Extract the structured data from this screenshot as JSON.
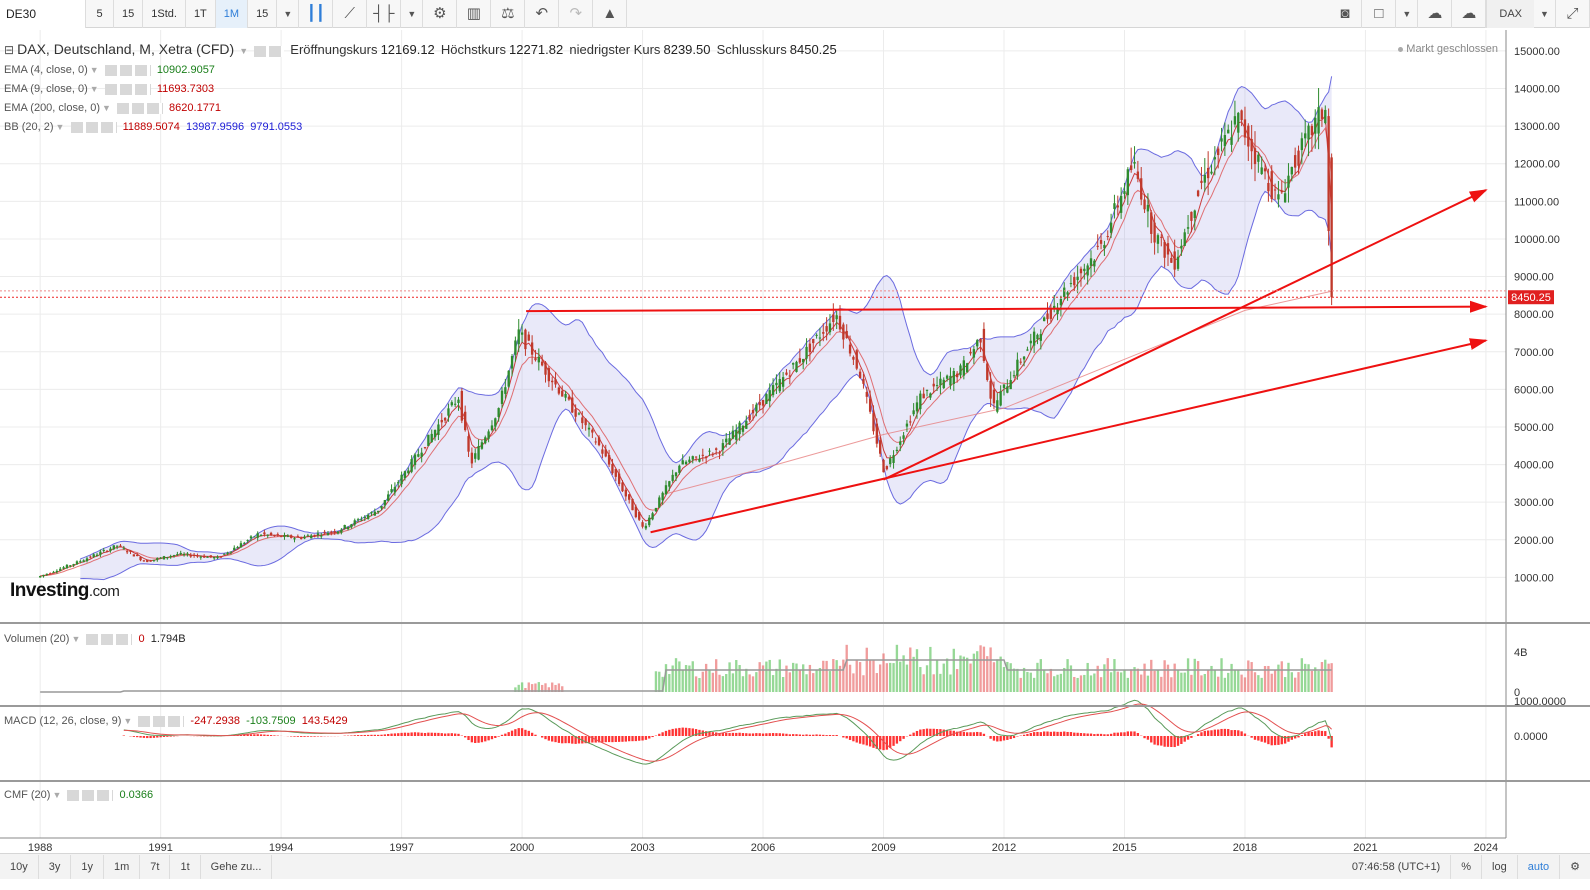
{
  "toolbar": {
    "symbol": "DE30",
    "intervals": [
      "5",
      "15",
      "1Std.",
      "1T",
      "1M",
      "15"
    ],
    "active_interval": "1M",
    "right_symbol": "DAX"
  },
  "legend": {
    "title": "DAX, Deutschland, M, Xetra (CFD)",
    "open_label": "Eröffnungskurs",
    "open_value": "12169.12",
    "high_label": "Höchstkurs",
    "high_value": "12271.82",
    "low_label": "niedrigster Kurs",
    "low_value": "8239.50",
    "close_label": "Schlusskurs",
    "close_value": "8450.25",
    "ema4_label": "EMA (4, close, 0)",
    "ema4_value": "10902.9057",
    "ema9_label": "EMA (9, close, 0)",
    "ema9_value": "11693.7303",
    "ema200_label": "EMA (200, close, 0)",
    "ema200_value": "8620.1771",
    "bb_label": "BB (20, 2)",
    "bb_mid": "11889.5074",
    "bb_upper": "13987.9596",
    "bb_lower": "9791.0553"
  },
  "market_status": "Markt geschlossen",
  "logo": {
    "main": "Investing",
    "suffix": ".com"
  },
  "volume": {
    "label": "Volumen (20)",
    "value1": "0",
    "value2": "1.794B",
    "axis_ticks": [
      "4B",
      "0"
    ]
  },
  "macd": {
    "label": "MACD (12, 26, close, 9)",
    "v1": "-247.2938",
    "v2": "-103.7509",
    "v3": "143.5429",
    "axis_ticks": [
      "1000.0000",
      "0.0000"
    ]
  },
  "cmf": {
    "label": "CMF (20)",
    "value": "0.0366"
  },
  "bottom_bar": {
    "ranges": [
      "10y",
      "3y",
      "1y",
      "1m",
      "7t",
      "1t",
      "Gehe zu..."
    ],
    "time": "07:46:58 (UTC+1)",
    "right": [
      "%",
      "log",
      "auto"
    ]
  },
  "chart_data": {
    "type": "candlestick",
    "title": "DAX, Deutschland, M, Xetra (CFD)",
    "x_ticks": [
      "1988",
      "1991",
      "1994",
      "1997",
      "2000",
      "2003",
      "2006",
      "2009",
      "2012",
      "2015",
      "2018",
      "2021",
      "2024"
    ],
    "x_range": [
      1987.0,
      2024.5
    ],
    "y_ticks": [
      "1000.00",
      "2000.00",
      "3000.00",
      "4000.00",
      "5000.00",
      "6000.00",
      "7000.00",
      "8000.00",
      "9000.00",
      "10000.00",
      "11000.00",
      "12000.00",
      "13000.00",
      "14000.00",
      "15000.00"
    ],
    "y_range": [
      0,
      15450
    ],
    "last_price_label": "8450.25",
    "price_path": [
      [
        1988.0,
        1000
      ],
      [
        1989.0,
        1400
      ],
      [
        1990.0,
        1850
      ],
      [
        1990.7,
        1420
      ],
      [
        1991.5,
        1620
      ],
      [
        1992.5,
        1520
      ],
      [
        1993.5,
        2150
      ],
      [
        1994.5,
        2050
      ],
      [
        1995.5,
        2250
      ],
      [
        1996.5,
        2800
      ],
      [
        1997.5,
        4300
      ],
      [
        1998.5,
        5800
      ],
      [
        1998.8,
        4000
      ],
      [
        1999.5,
        5500
      ],
      [
        2000.0,
        7500
      ],
      [
        2001.0,
        6000
      ],
      [
        2002.0,
        4500
      ],
      [
        2003.1,
        2300
      ],
      [
        2004.0,
        4000
      ],
      [
        2005.0,
        4400
      ],
      [
        2006.0,
        5600
      ],
      [
        2007.0,
        6800
      ],
      [
        2007.9,
        8000
      ],
      [
        2008.5,
        6400
      ],
      [
        2009.1,
        3800
      ],
      [
        2010.0,
        5800
      ],
      [
        2011.0,
        6500
      ],
      [
        2011.5,
        7400
      ],
      [
        2011.8,
        5500
      ],
      [
        2012.5,
        6800
      ],
      [
        2013.5,
        8500
      ],
      [
        2014.5,
        9800
      ],
      [
        2015.3,
        12000
      ],
      [
        2015.8,
        10200
      ],
      [
        2016.3,
        9300
      ],
      [
        2017.0,
        11500
      ],
      [
        2017.9,
        13200
      ],
      [
        2018.9,
        11000
      ],
      [
        2019.3,
        12000
      ],
      [
        2019.9,
        13200
      ],
      [
        2020.1,
        13500
      ],
      [
        2020.2,
        8450
      ]
    ],
    "ema200_path": [
      [
        2003.5,
        3200
      ],
      [
        2006.0,
        3900
      ],
      [
        2009.0,
        4800
      ],
      [
        2012.0,
        5500
      ],
      [
        2015.0,
        6800
      ],
      [
        2018.0,
        8100
      ],
      [
        2020.2,
        8620
      ]
    ],
    "trendlines": [
      {
        "from": [
          2000.1,
          8080
        ],
        "to": [
          2024.0,
          8200
        ]
      },
      {
        "from": [
          2003.2,
          2200
        ],
        "to": [
          2024.0,
          7300
        ]
      },
      {
        "from": [
          2009.0,
          3600
        ],
        "to": [
          2024.0,
          11300
        ]
      }
    ]
  }
}
